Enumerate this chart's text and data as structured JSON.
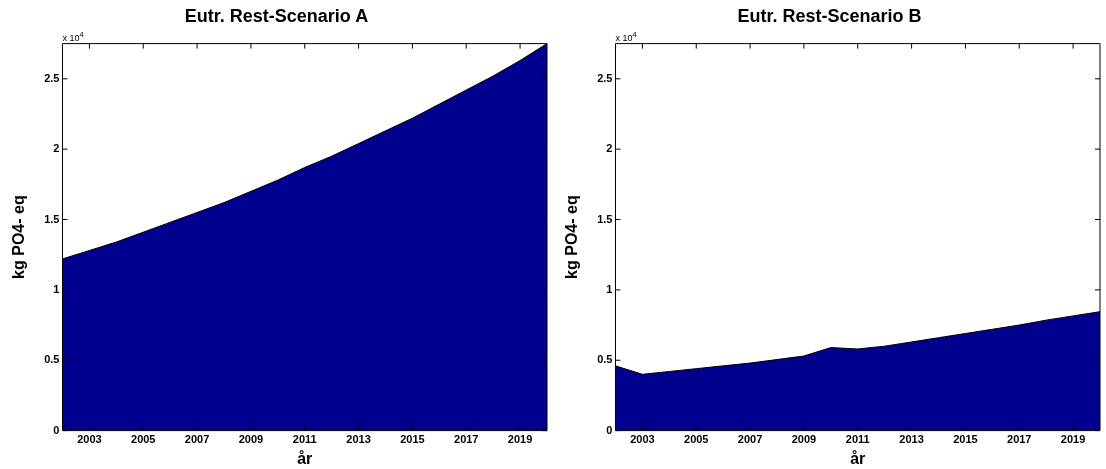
{
  "chart_data": [
    {
      "type": "area",
      "title": "Eutr. Rest-Scenario A",
      "xlabel": "år",
      "ylabel": "kg PO4- eq",
      "annotations": [
        "x 10$^{4}$"
      ],
      "x": [
        2002,
        2003,
        2004,
        2005,
        2006,
        2007,
        2008,
        2009,
        2010,
        2011,
        2012,
        2013,
        2014,
        2015,
        2016,
        2017,
        2018,
        2019,
        2020
      ],
      "series": [
        {
          "color": "#00008f",
          "values": [
            1.22,
            1.28,
            1.34,
            1.41,
            1.48,
            1.55,
            1.62,
            1.7,
            1.78,
            1.87,
            1.95,
            2.04,
            2.13,
            2.22,
            2.32,
            2.42,
            2.52,
            2.63,
            2.75
          ]
        }
      ],
      "xlim": [
        2002,
        2020
      ],
      "xticks": [
        2003,
        2005,
        2007,
        2009,
        2011,
        2013,
        2015,
        2017,
        2019
      ],
      "ylim": [
        0,
        2.75
      ],
      "yticks": [
        0,
        0.5,
        1,
        1.5,
        2,
        2.5
      ]
    },
    {
      "type": "area",
      "title": "Eutr. Rest-Scenario B",
      "xlabel": "år",
      "ylabel": "kg PO4- eq",
      "annotations": [
        "x 10$^{4}$"
      ],
      "x": [
        2002,
        2003,
        2004,
        2005,
        2006,
        2007,
        2008,
        2009,
        2010,
        2011,
        2012,
        2013,
        2014,
        2015,
        2016,
        2017,
        2018,
        2019,
        2020
      ],
      "series": [
        {
          "color": "#00008f",
          "values": [
            0.46,
            0.4,
            0.42,
            0.44,
            0.46,
            0.48,
            0.505,
            0.53,
            0.59,
            0.58,
            0.6,
            0.63,
            0.66,
            0.69,
            0.72,
            0.75,
            0.785,
            0.815,
            0.845
          ]
        }
      ],
      "xlim": [
        2002,
        2020
      ],
      "xticks": [
        2003,
        2005,
        2007,
        2009,
        2011,
        2013,
        2015,
        2017,
        2019
      ],
      "ylim": [
        0,
        2.75
      ],
      "yticks": [
        0,
        0.5,
        1,
        1.5,
        2,
        2.5
      ]
    }
  ]
}
